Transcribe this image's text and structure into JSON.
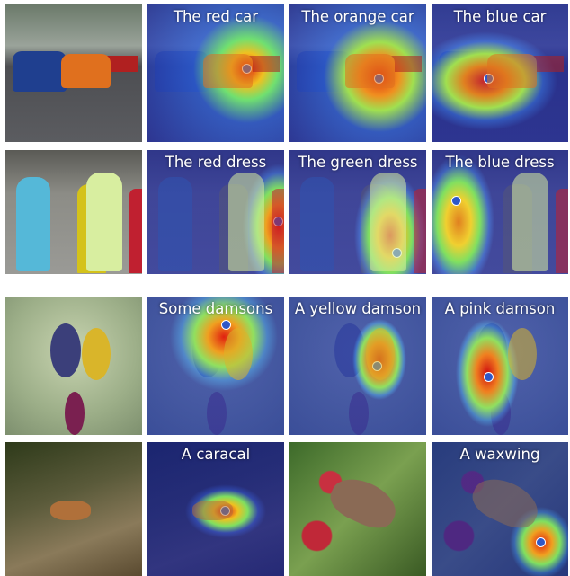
{
  "figure": {
    "rows": [
      {
        "captions": [
          "The red car",
          "The orange car",
          "The blue car"
        ]
      },
      {
        "captions": [
          "The red dress",
          "The green dress",
          "The blue dress"
        ]
      },
      {
        "captions": [
          "Some damsons",
          "A yellow damson",
          "A pink damson"
        ]
      },
      {
        "captions": [
          "A caracal",
          "A waxwing"
        ]
      }
    ]
  }
}
